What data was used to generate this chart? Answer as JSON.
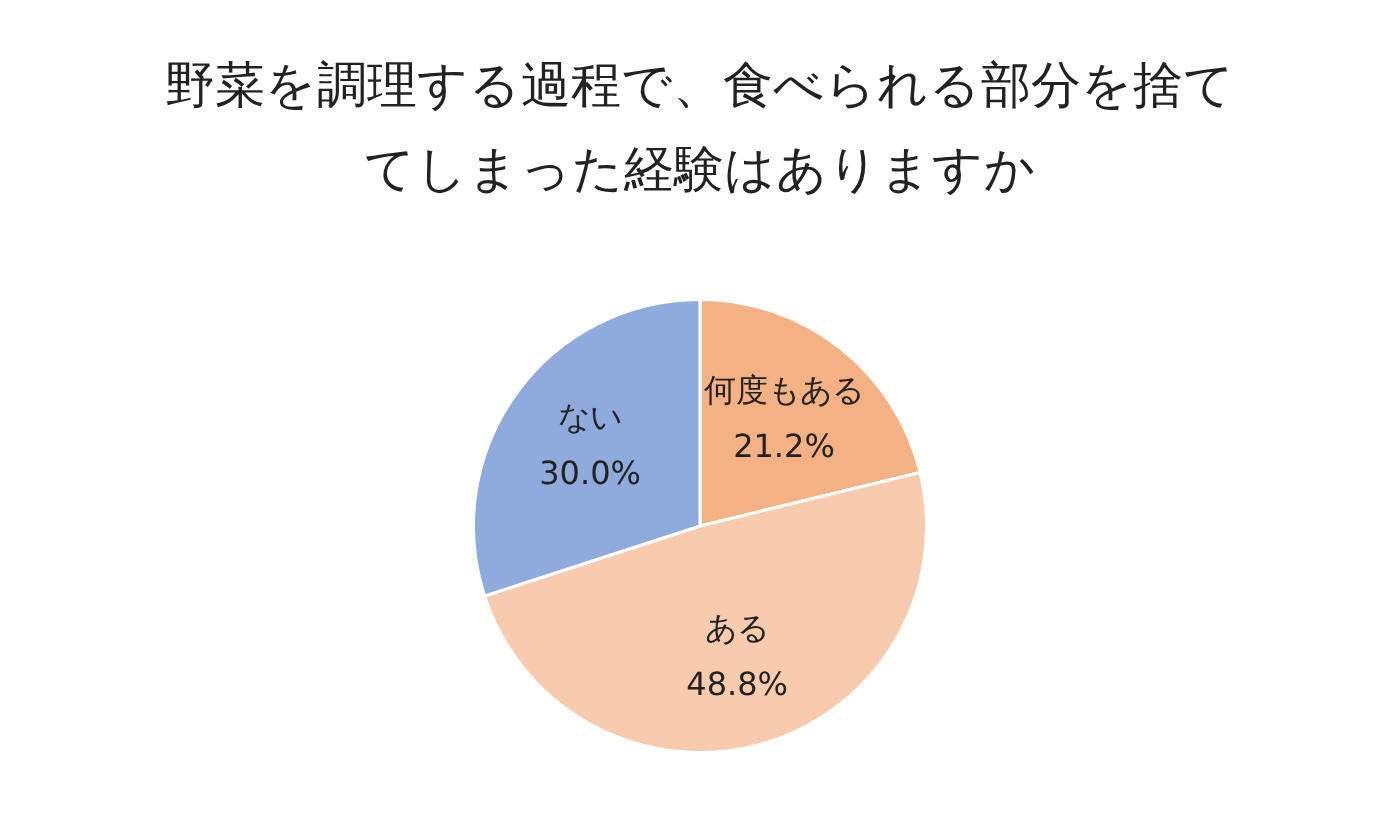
{
  "chart_data": {
    "type": "pie",
    "title": "野菜を調理する過程で、食べられる部分を捨ててしまった経験はありますか",
    "categories": [
      "何度もある",
      "ある",
      "ない"
    ],
    "values": [
      21.2,
      48.8,
      30.0
    ],
    "value_labels": [
      "21.2%",
      "48.8%",
      "30.0%"
    ],
    "colors": [
      "#f4b183",
      "#f8cbad",
      "#8faadc"
    ],
    "legend": false
  }
}
